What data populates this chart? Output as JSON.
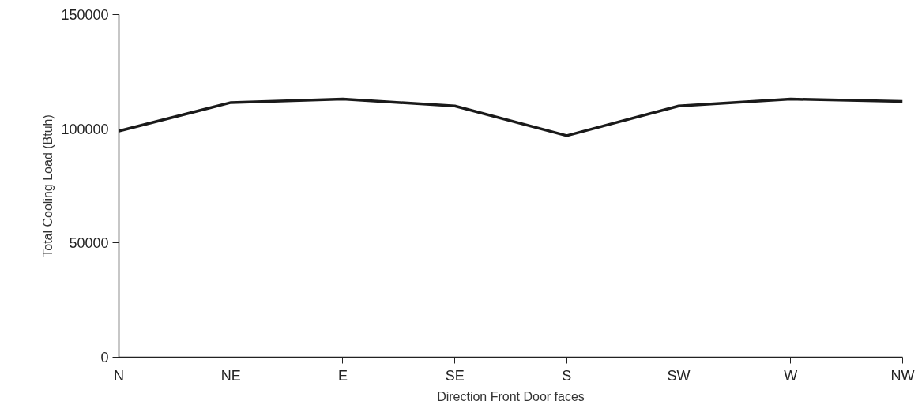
{
  "chart_data": {
    "type": "line",
    "xlabel": "Direction Front Door faces",
    "ylabel": "Total Cooling Load (Btuh)",
    "categories": [
      "N",
      "NE",
      "E",
      "SE",
      "S",
      "SW",
      "W",
      "NW"
    ],
    "series": [
      {
        "color": "#1a1a1a",
        "values": [
          99000,
          111500,
          113000,
          110000,
          97000,
          110000,
          113000,
          112000
        ]
      }
    ],
    "ylim": [
      0,
      150000
    ],
    "yticks": [
      0,
      50000,
      100000,
      150000
    ],
    "grid": false,
    "marker": "none",
    "line_style": "solid"
  }
}
